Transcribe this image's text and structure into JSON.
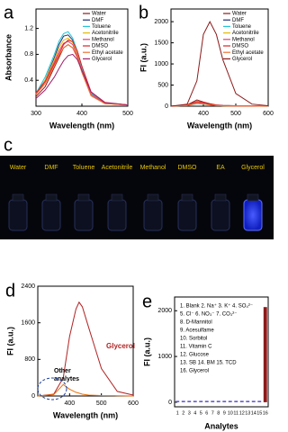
{
  "chart_data": [
    {
      "type": "line",
      "panel": "a",
      "xlabel": "Wavelength (nm)",
      "ylabel": "Absorbance",
      "x": [
        300,
        320,
        340,
        350,
        360,
        370,
        380,
        390,
        400,
        420,
        450,
        500
      ],
      "xlim": [
        300,
        500
      ],
      "xticks": [
        300,
        400,
        500
      ],
      "ylim": [
        0,
        1.5
      ],
      "yticks": [
        0.4,
        0.8,
        1.2
      ],
      "legend": "upper right",
      "series": [
        {
          "name": "Water",
          "color": "#8b1a1a",
          "values": [
            0.15,
            0.3,
            0.6,
            0.75,
            0.9,
            0.95,
            0.9,
            0.75,
            0.55,
            0.2,
            0.05,
            0.02
          ]
        },
        {
          "name": "DMF",
          "color": "#1f2f7a",
          "values": [
            0.2,
            0.4,
            0.75,
            0.95,
            1.08,
            1.1,
            1.02,
            0.85,
            0.6,
            0.2,
            0.05,
            0.02
          ]
        },
        {
          "name": "Toluene",
          "color": "#22c4d8",
          "values": [
            0.2,
            0.45,
            0.8,
            1.0,
            1.12,
            1.15,
            1.05,
            0.85,
            0.6,
            0.2,
            0.05,
            0.02
          ]
        },
        {
          "name": "Acetonitrile",
          "color": "#e6b800",
          "values": [
            0.18,
            0.4,
            0.72,
            0.9,
            1.02,
            1.05,
            0.98,
            0.8,
            0.55,
            0.18,
            0.04,
            0.02
          ]
        },
        {
          "name": "Methanol",
          "color": "#e0407a",
          "values": [
            0.18,
            0.38,
            0.68,
            0.85,
            0.97,
            1.0,
            0.95,
            0.78,
            0.55,
            0.18,
            0.04,
            0.02
          ]
        },
        {
          "name": "DMSO",
          "color": "#e02020",
          "values": [
            0.2,
            0.38,
            0.65,
            0.8,
            0.95,
            1.02,
            1.0,
            0.85,
            0.62,
            0.22,
            0.05,
            0.02
          ]
        },
        {
          "name": "Ethyl acetate",
          "color": "#f07030",
          "values": [
            0.18,
            0.35,
            0.62,
            0.78,
            0.9,
            0.95,
            0.9,
            0.75,
            0.52,
            0.16,
            0.04,
            0.02
          ]
        },
        {
          "name": "Glycerol",
          "color": "#a0206a",
          "values": [
            0.12,
            0.25,
            0.45,
            0.58,
            0.7,
            0.78,
            0.8,
            0.72,
            0.55,
            0.22,
            0.06,
            0.02
          ]
        }
      ]
    },
    {
      "type": "line",
      "panel": "b",
      "xlabel": "Wavelength (nm)",
      "ylabel": "FI (a.u.)",
      "x": [
        300,
        350,
        380,
        400,
        420,
        440,
        460,
        500,
        550,
        600
      ],
      "xlim": [
        300,
        600
      ],
      "xticks": [
        400,
        500,
        600
      ],
      "ylim": [
        0,
        2300
      ],
      "yticks": [
        0,
        500,
        1000,
        1500,
        2000
      ],
      "legend": "upper right",
      "series": [
        {
          "name": "Water",
          "color": "#8b1a1a",
          "values": [
            0,
            30,
            150,
            100,
            60,
            30,
            20,
            10,
            5,
            0
          ]
        },
        {
          "name": "DMF",
          "color": "#1f2f7a",
          "values": [
            0,
            20,
            90,
            70,
            40,
            20,
            10,
            5,
            2,
            0
          ]
        },
        {
          "name": "Toluene",
          "color": "#22c4d8",
          "values": [
            0,
            15,
            60,
            50,
            30,
            15,
            8,
            4,
            2,
            0
          ]
        },
        {
          "name": "Acetonitrile",
          "color": "#e6b800",
          "values": [
            0,
            20,
            80,
            60,
            35,
            18,
            9,
            4,
            2,
            0
          ]
        },
        {
          "name": "Methanol",
          "color": "#e0407a",
          "values": [
            0,
            25,
            100,
            80,
            45,
            22,
            10,
            5,
            2,
            0
          ]
        },
        {
          "name": "DMSO",
          "color": "#e02020",
          "values": [
            0,
            25,
            110,
            90,
            50,
            25,
            12,
            5,
            2,
            0
          ]
        },
        {
          "name": "Ethyl acetate",
          "color": "#f07030",
          "values": [
            0,
            20,
            70,
            55,
            30,
            15,
            8,
            4,
            2,
            0
          ]
        },
        {
          "name": "Glycerol",
          "color": "#8b1a1a",
          "values": [
            0,
            50,
            600,
            1700,
            2000,
            1700,
            1100,
            300,
            50,
            10
          ]
        }
      ]
    },
    {
      "type": "line",
      "panel": "d",
      "xlabel": "Wavelength (nm)",
      "ylabel": "FI (a.u.)",
      "x": [
        300,
        350,
        380,
        400,
        420,
        430,
        440,
        460,
        500,
        550,
        600
      ],
      "xlim": [
        300,
        600
      ],
      "xticks": [
        400,
        500,
        600
      ],
      "ylim": [
        0,
        2400
      ],
      "yticks": [
        0,
        800,
        1600,
        2400
      ],
      "annotations": [
        "Glycerol",
        "Other",
        "analytes"
      ],
      "series": [
        {
          "color": "#b22222",
          "values": [
            0,
            40,
            400,
            1300,
            1900,
            2050,
            1950,
            1500,
            600,
            100,
            20
          ]
        },
        {
          "color": "#e8730c",
          "values": [
            0,
            30,
            250,
            150,
            80,
            60,
            40,
            20,
            10,
            5,
            0
          ]
        }
      ]
    },
    {
      "type": "bar",
      "panel": "e",
      "xlabel": "Analytes",
      "ylabel": "FI (a.u.)",
      "categories": [
        "1",
        "2",
        "3",
        "4",
        "5",
        "6",
        "7",
        "8",
        "9",
        "10",
        "11",
        "12",
        "13",
        "14",
        "15",
        "16"
      ],
      "values": [
        30,
        30,
        30,
        30,
        30,
        30,
        30,
        30,
        30,
        30,
        30,
        30,
        30,
        30,
        30,
        2080
      ],
      "colors": [
        "#5a4fcf",
        "#5a4fcf",
        "#5a4fcf",
        "#5a4fcf",
        "#5a4fcf",
        "#5a4fcf",
        "#5a4fcf",
        "#5a4fcf",
        "#5a4fcf",
        "#5a4fcf",
        "#5a4fcf",
        "#5a4fcf",
        "#5a4fcf",
        "#5a4fcf",
        "#5a4fcf",
        "#8b1a1a"
      ],
      "ylim": [
        -100,
        2300
      ],
      "yticks": [
        0,
        1000,
        2000
      ],
      "annotations": [
        "1. Blank  2. Na⁺ 3. K⁺ 4. SO₄²⁻",
        "5. Cl⁻  6. NO₃⁻  7. CO₃²⁻",
        "8. D-Mannitol",
        "9. Acesulfame",
        "10. Sorbitol",
        "11. Vitamin C",
        "12. Glucose",
        "13. SB   14. BM  15. TCD",
        "16. Glycerol"
      ]
    }
  ],
  "photo": {
    "panel": "c",
    "labels": [
      "Water",
      "DMF",
      "Toluene",
      "Acetonitrile",
      "Methanol",
      "DMSO",
      "EA",
      "Glycerol"
    ]
  }
}
